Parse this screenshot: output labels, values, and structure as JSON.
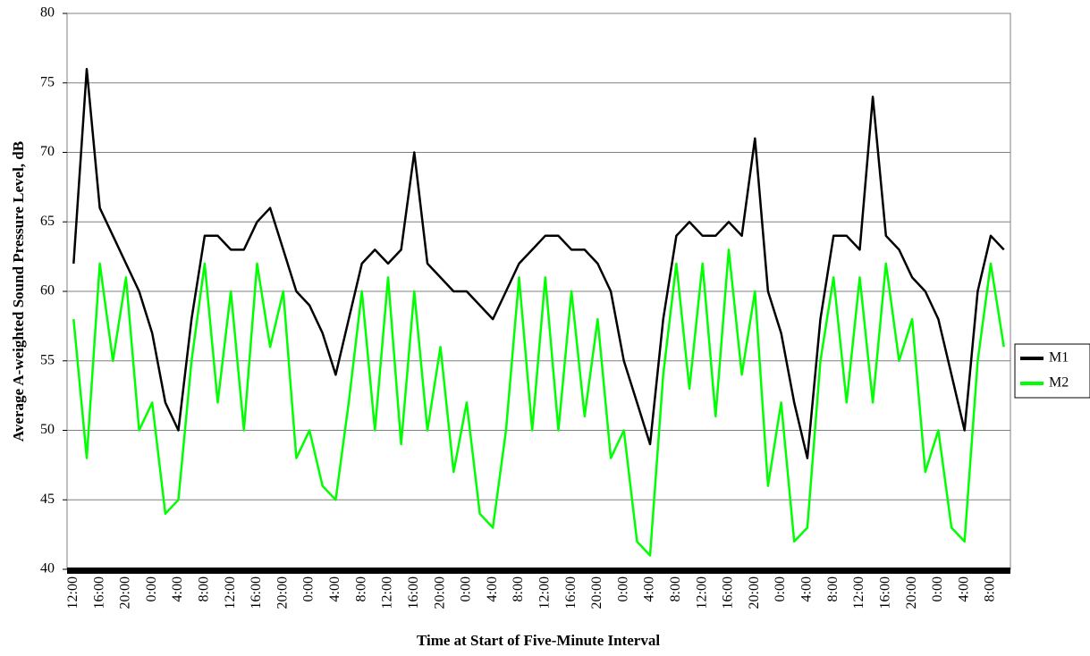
{
  "chart_data": {
    "type": "line",
    "y_label": "Average A-weighted Sound Pressure Level, dB",
    "x_label": "Time at Start of Five-Minute Interval",
    "categories": [
      "12:00",
      null,
      "16:00",
      null,
      "20:00",
      null,
      "0:00",
      null,
      "4:00",
      null,
      "8:00",
      null,
      "12:00",
      null,
      "16:00",
      null,
      "20:00",
      null,
      "0:00",
      null,
      "4:00",
      null,
      "8:00",
      null,
      "12:00",
      null,
      "16:00",
      null,
      "20:00",
      null,
      "0:00",
      null,
      "4:00",
      null,
      "8:00",
      null,
      "12:00",
      null,
      "16:00",
      null,
      "20:00",
      null,
      "0:00",
      null,
      "4:00",
      null,
      "8:00",
      null,
      "12:00",
      null,
      "16:00",
      null,
      "20:00",
      null,
      "0:00",
      null,
      "4:00",
      null,
      "8:00",
      null,
      "12:00",
      null,
      "16:00",
      null,
      "20:00",
      null,
      "0:00",
      null,
      "4:00",
      null,
      "8:00",
      null
    ],
    "series": [
      {
        "name": "M1",
        "color": "#000000",
        "values": [
          62,
          76,
          66,
          64,
          62,
          60,
          57,
          52,
          50,
          58,
          64,
          64,
          63,
          63,
          65,
          66,
          63,
          60,
          59,
          57,
          54,
          58,
          62,
          63,
          62,
          63,
          70,
          62,
          61,
          60,
          60,
          59,
          58,
          60,
          62,
          63,
          64,
          64,
          63,
          63,
          62,
          60,
          55,
          52,
          49,
          58,
          64,
          65,
          64,
          64,
          65,
          64,
          71,
          60,
          57,
          52,
          48,
          58,
          64,
          64,
          63,
          74,
          64,
          63,
          61,
          60,
          58,
          54,
          50,
          60,
          64,
          63
        ]
      },
      {
        "name": "M2",
        "color": "#00ff00",
        "values": [
          58,
          48,
          62,
          55,
          61,
          50,
          52,
          44,
          45,
          55,
          62,
          52,
          60,
          50,
          62,
          56,
          60,
          48,
          50,
          46,
          45,
          52,
          60,
          50,
          61,
          49,
          60,
          50,
          56,
          47,
          52,
          44,
          43,
          50,
          61,
          50,
          61,
          50,
          60,
          51,
          58,
          48,
          50,
          42,
          41,
          54,
          62,
          53,
          62,
          51,
          63,
          54,
          60,
          46,
          52,
          42,
          43,
          55,
          61,
          52,
          61,
          52,
          62,
          55,
          58,
          47,
          50,
          43,
          42,
          55,
          62,
          56
        ]
      }
    ],
    "ylim": [
      40,
      80
    ],
    "yticks": [
      40,
      45,
      50,
      55,
      60,
      65,
      70,
      75,
      80
    ],
    "grid": true,
    "legend": "right"
  }
}
